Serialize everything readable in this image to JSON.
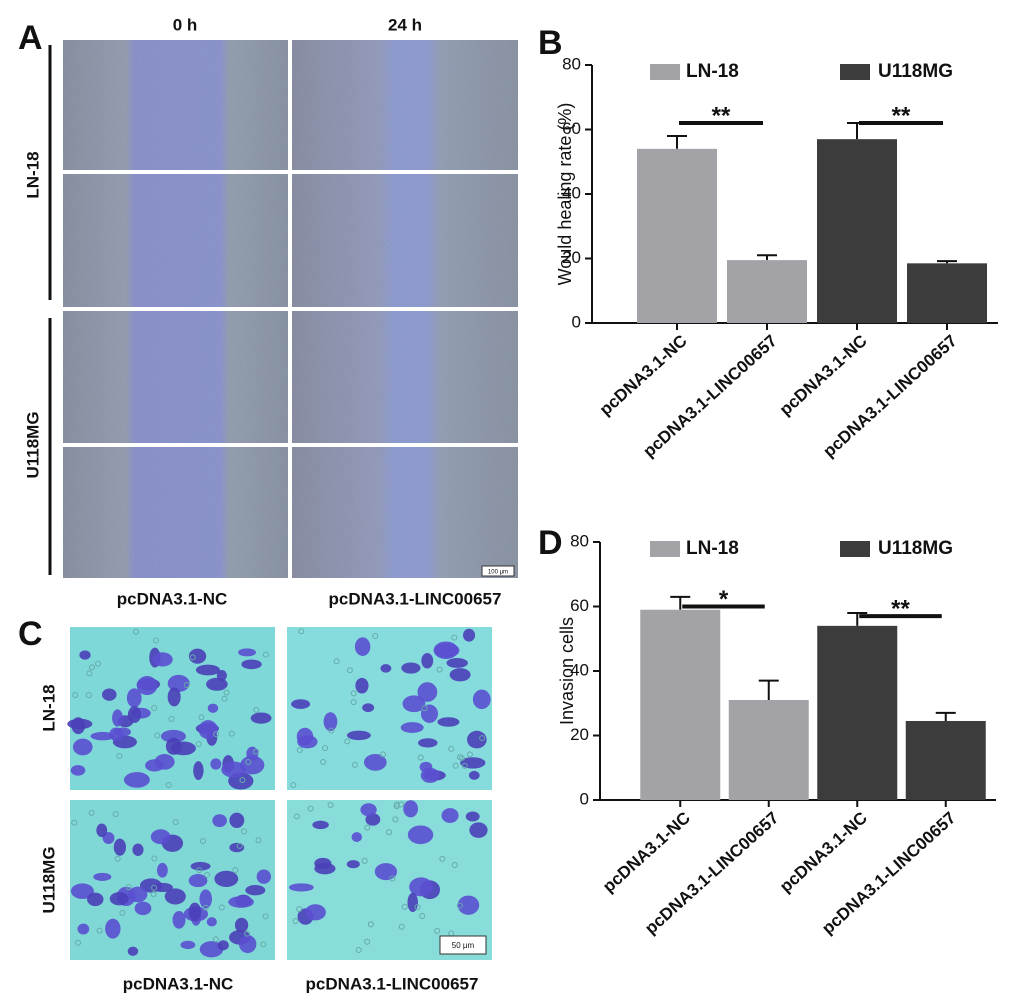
{
  "panels": {
    "A": {
      "letter": "A",
      "columns": [
        "0 h",
        "24 h"
      ],
      "rows": [
        "LN-18",
        "U118MG"
      ],
      "conditions": [
        "pcDNA3.1-NC",
        "pcDNA3.1-LINC00657"
      ],
      "scale_bar": "100 μm"
    },
    "C": {
      "letter": "C",
      "rows": [
        "LN-18",
        "U118MG"
      ],
      "conditions": [
        "pcDNA3.1-NC",
        "pcDNA3.1-LINC00657"
      ],
      "scale_bar": "50 μm"
    }
  },
  "chart_data": [
    {
      "type": "bar",
      "letter": "B",
      "ylabel": "Would healing rate (%)",
      "categories": [
        "pcDNA3.1-NC",
        "pcDNA3.1-LINC00657",
        "pcDNA3.1-NC",
        "pcDNA3.1-LINC00657"
      ],
      "series": [
        {
          "name": "LN-18",
          "color": "#a3a3a7",
          "values": [
            54,
            19.5,
            null,
            null
          ],
          "errors": [
            4,
            1.5,
            null,
            null
          ]
        },
        {
          "name": "U118MG",
          "color": "#3c3c3c",
          "values": [
            null,
            null,
            57,
            18.5
          ],
          "errors": [
            null,
            null,
            5,
            0.7
          ]
        }
      ],
      "annotations": [
        {
          "text": "**",
          "y": 62
        },
        {
          "text": "**",
          "y": 62
        }
      ],
      "ylim": [
        0,
        80
      ],
      "yticks": [
        0,
        20,
        40,
        60,
        80
      ]
    },
    {
      "type": "bar",
      "letter": "D",
      "ylabel": "Invasion cells",
      "categories": [
        "pcDNA3.1-NC",
        "pcDNA3.1-LINC00657",
        "pcDNA3.1-NC",
        "pcDNA3.1-LINC00657"
      ],
      "series": [
        {
          "name": "LN-18",
          "color": "#a3a3a7",
          "values": [
            59,
            31,
            null,
            null
          ],
          "errors": [
            4,
            6,
            null,
            null
          ]
        },
        {
          "name": "U118MG",
          "color": "#3c3c3c",
          "values": [
            null,
            null,
            54,
            24.5
          ],
          "errors": [
            null,
            null,
            4,
            2.5
          ]
        }
      ],
      "annotations": [
        {
          "text": "*",
          "y": 60
        },
        {
          "text": "**",
          "y": 57
        }
      ],
      "ylim": [
        0,
        80
      ],
      "yticks": [
        0,
        20,
        40,
        60,
        80
      ]
    }
  ]
}
